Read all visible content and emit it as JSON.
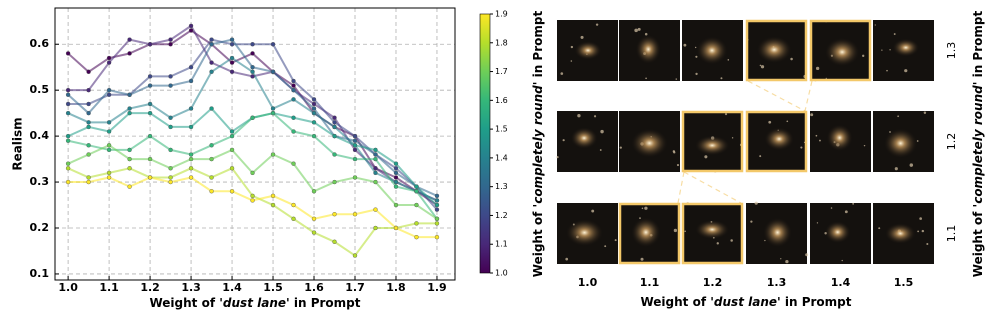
{
  "chart_data": {
    "type": "line",
    "y_label": "Realism",
    "x_label": [
      "Weight of '",
      "dust lane",
      "' in Prompt"
    ],
    "x": [
      1.0,
      1.05,
      1.1,
      1.15,
      1.2,
      1.25,
      1.3,
      1.35,
      1.4,
      1.45,
      1.5,
      1.55,
      1.6,
      1.65,
      1.7,
      1.75,
      1.8,
      1.85,
      1.9
    ],
    "xlim": [
      0.968,
      1.944
    ],
    "xticks": [
      {
        "value": 1.0,
        "label": "1.0"
      },
      1.1,
      1.2,
      1.3,
      1.4,
      1.5,
      1.6,
      1.7,
      1.8,
      1.9
    ],
    "ylim": [
      0.0868,
      0.6789
    ],
    "yticks": [
      0.1,
      0.2,
      0.3,
      0.4,
      0.5,
      0.6
    ],
    "grid": true,
    "series": [
      {
        "color": "#440154",
        "values": [
          0.58,
          0.54,
          0.57,
          0.58,
          0.6,
          0.6,
          0.63,
          0.6,
          0.56,
          0.58,
          0.54,
          0.51,
          0.45,
          0.42,
          0.4,
          0.33,
          0.31,
          0.28,
          0.25
        ]
      },
      {
        "color": "#482878",
        "values": [
          0.5,
          0.5,
          0.56,
          0.61,
          0.6,
          0.61,
          0.64,
          0.56,
          0.54,
          0.53,
          0.54,
          0.5,
          0.47,
          0.44,
          0.37,
          0.33,
          0.3,
          0.28,
          0.26
        ]
      },
      {
        "color": "#3e4989",
        "values": [
          0.47,
          0.47,
          0.49,
          0.49,
          0.53,
          0.53,
          0.55,
          0.61,
          0.6,
          0.6,
          0.6,
          0.52,
          0.48,
          0.43,
          0.4,
          0.36,
          0.33,
          0.29,
          0.24
        ]
      },
      {
        "color": "#31688e",
        "values": [
          0.49,
          0.45,
          0.5,
          0.49,
          0.51,
          0.51,
          0.52,
          0.6,
          0.61,
          0.55,
          0.54,
          0.5,
          0.46,
          0.4,
          0.39,
          0.36,
          0.32,
          0.29,
          0.27
        ]
      },
      {
        "color": "#26828e",
        "values": [
          0.45,
          0.43,
          0.43,
          0.46,
          0.47,
          0.44,
          0.46,
          0.54,
          0.57,
          0.54,
          0.46,
          0.48,
          0.45,
          0.42,
          0.38,
          0.32,
          0.3,
          0.28,
          0.26
        ]
      },
      {
        "color": "#1f9e89",
        "values": [
          0.4,
          0.42,
          0.41,
          0.45,
          0.45,
          0.42,
          0.42,
          0.46,
          0.41,
          0.44,
          0.45,
          0.44,
          0.43,
          0.4,
          0.38,
          0.37,
          0.34,
          0.29,
          0.25
        ]
      },
      {
        "color": "#35b779",
        "values": [
          0.39,
          0.38,
          0.37,
          0.37,
          0.4,
          0.37,
          0.36,
          0.38,
          0.4,
          0.44,
          0.45,
          0.41,
          0.4,
          0.36,
          0.35,
          0.35,
          0.29,
          0.28,
          0.22
        ]
      },
      {
        "color": "#6ece58",
        "values": [
          0.34,
          0.36,
          0.38,
          0.35,
          0.35,
          0.33,
          0.35,
          0.35,
          0.37,
          0.32,
          0.36,
          0.34,
          0.28,
          0.3,
          0.31,
          0.3,
          0.25,
          0.25,
          0.22
        ]
      },
      {
        "color": "#b5de2b",
        "values": [
          0.33,
          0.31,
          0.32,
          0.33,
          0.31,
          0.31,
          0.33,
          0.31,
          0.33,
          0.27,
          0.25,
          0.22,
          0.19,
          0.17,
          0.14,
          0.2,
          0.2,
          0.21,
          0.21
        ]
      },
      {
        "color": "#fde725",
        "values": [
          0.3,
          0.3,
          0.31,
          0.29,
          0.31,
          0.3,
          0.31,
          0.28,
          0.28,
          0.26,
          0.27,
          0.25,
          0.22,
          0.23,
          0.23,
          0.24,
          0.2,
          0.18,
          0.18
        ]
      }
    ],
    "colorbar": {
      "label": [
        "Weight of '",
        "completely round",
        "' in Prompt"
      ],
      "lim": [
        1.0,
        1.9
      ],
      "ticks": [
        {
          "value": 1.0,
          "label": "1.0"
        },
        1.1,
        1.2,
        1.3,
        1.4,
        1.5,
        1.6,
        1.7,
        1.8,
        1.9
      ]
    }
  },
  "image_grid": {
    "column_labels": [
      "1.0",
      "1.1",
      "1.2",
      "1.3",
      "1.4",
      "1.5"
    ],
    "row_labels": [
      "1.3",
      "1.2",
      "1.1"
    ],
    "x_label": [
      "Weight of '",
      "dust lane",
      "' in Prompt"
    ],
    "y_label": [
      "Weight of '",
      "completely round",
      "' in Prompt"
    ]
  }
}
